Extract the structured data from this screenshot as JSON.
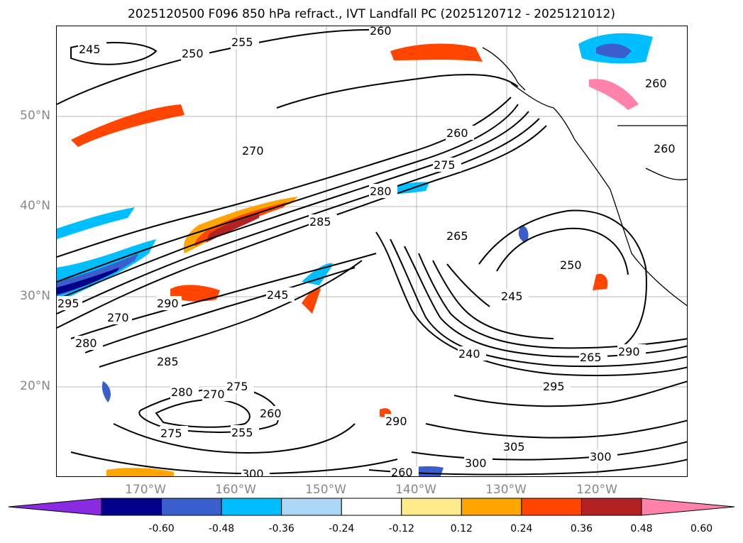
{
  "title": "2025120500 F096 850 hPa refract., IVT Landfall PC (2025120712 - 2025121012)",
  "lat_labels": [
    "50°N",
    "40°N",
    "30°N",
    "20°N"
  ],
  "lon_labels": [
    "170°W",
    "160°W",
    "150°W",
    "140°W",
    "130°W",
    "120°W"
  ],
  "contour_labels": [
    "245",
    "250",
    "255",
    "260",
    "260",
    "260",
    "260",
    "265",
    "270",
    "275",
    "280",
    "285",
    "295",
    "290",
    "270",
    "280",
    "285",
    "280",
    "270",
    "275",
    "275",
    "260",
    "255",
    "245",
    "240",
    "245",
    "250",
    "265",
    "290",
    "295",
    "290",
    "300",
    "305",
    "300",
    "300",
    "260"
  ],
  "colorbar": {
    "ticks": [
      "-0.60",
      "-0.48",
      "-0.36",
      "-0.24",
      "-0.12",
      "0.12",
      "0.24",
      "0.36",
      "0.48",
      "0.60"
    ],
    "colors": [
      "#8a2be2",
      "#00008b",
      "#3a5fcd",
      "#00bfff",
      "#add8f5",
      "#ffffff",
      "#ffeb8c",
      "#ffa500",
      "#ff4500",
      "#b22222",
      "#ff82ab"
    ]
  }
}
